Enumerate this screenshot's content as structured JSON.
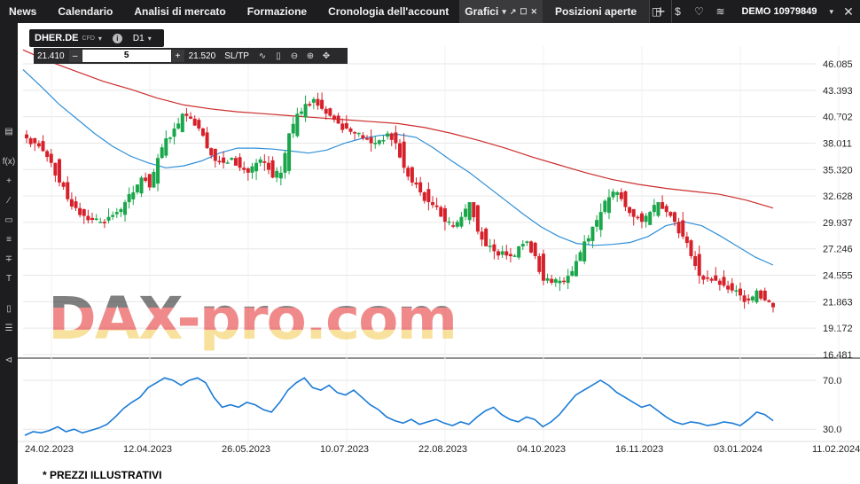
{
  "topbar": {
    "nav": [
      {
        "label": "News"
      },
      {
        "label": "Calendario"
      },
      {
        "label": "Analisi di mercato"
      },
      {
        "label": "Formazione"
      },
      {
        "label": "Cronologia dell'account"
      }
    ],
    "active_tab": {
      "label": "Grafici"
    },
    "positions_tab": {
      "label": "Posizioni aperte"
    },
    "account": {
      "label": "DEMO 10979849"
    }
  },
  "symbol": {
    "name": "DHER.DE",
    "type": "CFD",
    "timeframe": "D1"
  },
  "trade": {
    "bid": "21.410",
    "ask": "21.520",
    "quantity": "5",
    "sltp": "SL/TP"
  },
  "watermark": "DAX-pro.com",
  "footer": "* PREZZI ILLUSTRATIVI",
  "colors": {
    "up": "#1aa64a",
    "down": "#d6212b",
    "ma_fast": "#2f8fd8",
    "ma_slow": "#cc2c2c",
    "rsi": "#1a7bd6"
  },
  "chart_data": {
    "type": "candlestick",
    "timeframe": "D1",
    "price_axis": {
      "ticks": [
        "46.085",
        "43.393",
        "40.702",
        "38.011",
        "35.320",
        "32.628",
        "29.937",
        "27.246",
        "24.555",
        "21.863",
        "19.172",
        "16.481"
      ],
      "range": [
        16.481,
        46.085
      ]
    },
    "x_ticks": [
      "24.02.2023",
      "12.04.2023",
      "26.05.2023",
      "10.07.2023",
      "22.08.2023",
      "04.10.2023",
      "16.11.2023",
      "03.01.2024",
      "11.02.2024"
    ],
    "close_series": [
      38.5,
      38.0,
      37.2,
      36.0,
      34.0,
      32.3,
      31.4,
      30.6,
      30.2,
      30.0,
      30.5,
      31.0,
      32.0,
      33.0,
      34.5,
      33.5,
      36.5,
      38.5,
      39.5,
      41.0,
      40.5,
      39.5,
      37.5,
      36.2,
      36.0,
      36.5,
      35.5,
      35.0,
      36.0,
      36.0,
      34.5,
      35.0,
      39.0,
      41.0,
      42.0,
      42.5,
      41.5,
      40.8,
      40.0,
      39.5,
      39.0,
      38.5,
      38.0,
      38.3,
      39.0,
      38.0,
      35.5,
      34.0,
      33.0,
      32.0,
      31.5,
      30.0,
      29.5,
      30.5,
      32.0,
      29.0,
      27.5,
      27.0,
      27.0,
      26.5,
      27.5,
      28.0,
      26.5,
      24.0,
      23.8,
      24.0,
      24.5,
      26.0,
      28.0,
      29.5,
      31.0,
      32.5,
      33.0,
      31.5,
      30.5,
      30.0,
      31.0,
      32.0,
      31.0,
      30.0,
      28.5,
      26.5,
      24.5,
      24.2,
      24.0,
      23.5,
      23.0,
      22.5,
      22.0,
      23.0,
      22.0,
      21.3
    ],
    "ma_fast": [
      45.5,
      43.8,
      42.0,
      40.5,
      39.0,
      37.7,
      36.7,
      36.0,
      35.5,
      35.7,
      36.2,
      37.0,
      37.5,
      37.5,
      37.4,
      37.2,
      37.0,
      37.3,
      38.0,
      38.5,
      38.8,
      38.9,
      38.6,
      37.5,
      36.2,
      35.0,
      33.6,
      32.2,
      30.8,
      29.5,
      28.5,
      27.8,
      27.6,
      27.7,
      27.9,
      28.5,
      29.6,
      30.0,
      29.6,
      28.6,
      27.5,
      26.4,
      25.6
    ],
    "ma_slow": [
      47.5,
      46.3,
      45.3,
      44.3,
      43.5,
      42.6,
      41.9,
      41.5,
      41.2,
      41.0,
      40.8,
      40.6,
      40.4,
      40.2,
      40.0,
      39.6,
      39.0,
      38.3,
      37.5,
      36.6,
      35.8,
      35.0,
      34.3,
      33.8,
      33.4,
      33.1,
      32.8,
      32.2,
      31.4
    ],
    "rsi": {
      "ticks": [
        "70.0",
        "30.0"
      ],
      "range": [
        20,
        78
      ],
      "values": [
        25,
        28,
        27,
        29,
        32,
        28,
        30,
        27,
        29,
        31,
        34,
        40,
        47,
        52,
        56,
        64,
        68,
        72,
        70,
        66,
        70,
        72,
        68,
        56,
        48,
        50,
        48,
        52,
        50,
        46,
        44,
        52,
        62,
        68,
        72,
        64,
        62,
        66,
        60,
        58,
        62,
        56,
        50,
        46,
        40,
        37,
        35,
        38,
        34,
        36,
        38,
        35,
        33,
        36,
        34,
        40,
        45,
        48,
        42,
        38,
        36,
        40,
        38,
        32,
        36,
        42,
        50,
        58,
        62,
        66,
        70,
        66,
        60,
        56,
        52,
        48,
        50,
        45,
        40,
        36,
        34,
        36,
        35,
        33,
        34,
        36,
        35,
        33,
        38,
        44,
        42,
        37
      ]
    }
  }
}
